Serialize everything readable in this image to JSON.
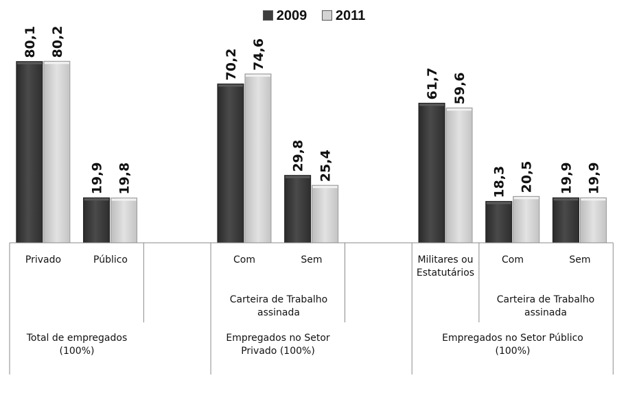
{
  "chart_data": {
    "type": "bar",
    "legend": [
      "2009",
      "2011"
    ],
    "series": [
      {
        "name": "2009",
        "color": "#3d3d3d",
        "values": [
          80.1,
          19.9,
          70.2,
          29.8,
          61.7,
          18.3,
          19.9
        ]
      },
      {
        "name": "2011",
        "color": "#d3d3d3",
        "values": [
          80.2,
          19.8,
          74.6,
          25.4,
          59.6,
          20.5,
          19.9
        ]
      }
    ],
    "value_labels": [
      [
        "80,1",
        "19,9",
        "70,2",
        "29,8",
        "61,7",
        "18,3",
        "19,9"
      ],
      [
        "80,2",
        "19,8",
        "74,6",
        "25,4",
        "59,6",
        "20,5",
        "19,9"
      ]
    ],
    "categories": [
      "Privado",
      "Público",
      "Com",
      "Sem",
      "Militares ou Estatutários",
      "Com",
      "Sem"
    ],
    "subgroup_labels": [
      "Carteira de Trabalho assinada",
      "Carteira de Trabalho assinada"
    ],
    "group_labels": [
      "Total de empregados (100%)",
      "Empregados no Setor Privado (100%)",
      "Empregados no Setor Público (100%)"
    ],
    "ylim": [
      0,
      100
    ],
    "grid": false,
    "legend_position": "top-center"
  }
}
